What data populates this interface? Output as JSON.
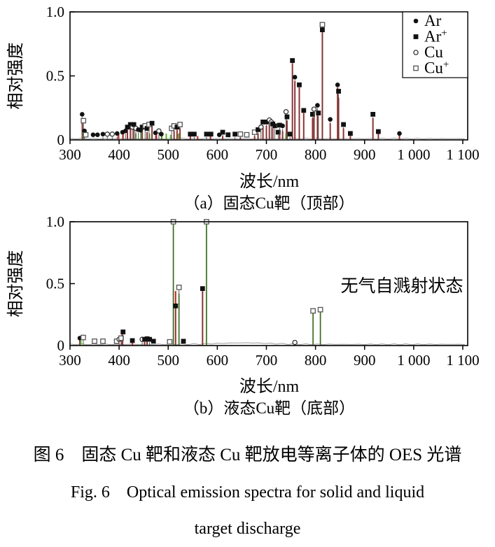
{
  "figure": {
    "caption_zh": "图 6　固态 Cu 靶和液态 Cu 靶放电等离子体的 OES 光谱",
    "caption_en_line1": "Fig. 6　Optical emission spectra for solid and liquid",
    "caption_en_line2": "target discharge"
  },
  "colors": {
    "spike_red": "#c32222",
    "spike_green": "#5fae2f",
    "stem_gray": "#4a4a4a",
    "baseline_gray": "#9a9a9a",
    "marker_black": "#111111",
    "open_marker_stroke": "#555555",
    "axis_black": "#000000",
    "annotation_gray": "#3a3a3a"
  },
  "chart_data": [
    {
      "id": "a",
      "type": "scatter",
      "subtype": "stem-spectrum",
      "subtitle": "（a）固态Cu靶（顶部）",
      "xlabel": "波长/nm",
      "ylabel": "相对强度",
      "xlim": [
        300,
        1110
      ],
      "ylim": [
        0,
        1.0
      ],
      "grid": false,
      "legend_position": "top-right-inside",
      "xticks": [
        {
          "v": 300,
          "label": "300"
        },
        {
          "v": 400,
          "label": "400"
        },
        {
          "v": 500,
          "label": "500"
        },
        {
          "v": 600,
          "label": "600"
        },
        {
          "v": 700,
          "label": "700"
        },
        {
          "v": 800,
          "label": "800"
        },
        {
          "v": 900,
          "label": "900"
        },
        {
          "v": 1000,
          "label": "1 000"
        },
        {
          "v": 1100,
          "label": "1 100"
        }
      ],
      "yticks": [
        {
          "v": 0,
          "label": "0"
        },
        {
          "v": 0.5,
          "label": "0.5"
        },
        {
          "v": 1.0,
          "label": "1.0"
        }
      ],
      "legend": [
        {
          "base": "Ar",
          "sup": "",
          "marker": "filled-circle"
        },
        {
          "base": "Ar",
          "sup": "+",
          "marker": "filled-square"
        },
        {
          "base": "Cu",
          "sup": "",
          "marker": "open-circle"
        },
        {
          "base": "Cu",
          "sup": "+",
          "marker": "open-square"
        }
      ],
      "points": [
        [
          324.7,
          0.2,
          "Ar"
        ],
        [
          327.4,
          0.15,
          "Cu+"
        ],
        [
          329.5,
          0.07,
          "Ar"
        ],
        [
          332,
          0.04,
          "Cu+"
        ],
        [
          347,
          0.04,
          "Ar"
        ],
        [
          356,
          0.04,
          "Ar"
        ],
        [
          367,
          0.045,
          "Ar"
        ],
        [
          376,
          0.045,
          "Cu"
        ],
        [
          386,
          0.045,
          "Cu"
        ],
        [
          396,
          0.05,
          "Ar"
        ],
        [
          407,
          0.06,
          "Ar"
        ],
        [
          413,
          0.07,
          "Ar"
        ],
        [
          417,
          0.1,
          "Ar+"
        ],
        [
          423,
          0.12,
          "Ar+"
        ],
        [
          427,
          0.1,
          "Cu"
        ],
        [
          430,
          0.12,
          "Ar+"
        ],
        [
          434,
          0.09,
          "Cu"
        ],
        [
          439,
          0.08,
          "Ar"
        ],
        [
          444,
          0.075,
          "Ar"
        ],
        [
          447,
          0.1,
          "Ar+"
        ],
        [
          453,
          0.11,
          "Cu+"
        ],
        [
          457,
          0.09,
          "Ar+"
        ],
        [
          461,
          0.12,
          "Cu+"
        ],
        [
          467,
          0.13,
          "Ar+"
        ],
        [
          474,
          0.055,
          "Ar"
        ],
        [
          481,
          0.07,
          "Cu"
        ],
        [
          486,
          0.045,
          "Ar"
        ],
        [
          507,
          0.09,
          "Cu+"
        ],
        [
          512,
          0.11,
          "Cu+"
        ],
        [
          518,
          0.1,
          "Ar+"
        ],
        [
          524,
          0.12,
          "Cu+"
        ],
        [
          545,
          0.045,
          "Ar+"
        ],
        [
          553,
          0.045,
          "Ar+"
        ],
        [
          578,
          0.045,
          "Ar+"
        ],
        [
          587,
          0.045,
          "Ar+"
        ],
        [
          604,
          0.04,
          "Ar"
        ],
        [
          611,
          0.06,
          "Ar+"
        ],
        [
          622,
          0.04,
          "Ar+"
        ],
        [
          636,
          0.045,
          "Ar+"
        ],
        [
          647,
          0.045,
          "Cu+"
        ],
        [
          660,
          0.04,
          "Cu+"
        ],
        [
          676,
          0.06,
          "Cu+"
        ],
        [
          683,
          0.08,
          "Ar+"
        ],
        [
          689,
          0.1,
          "Cu"
        ],
        [
          693,
          0.14,
          "Ar+"
        ],
        [
          700,
          0.14,
          "Ar+"
        ],
        [
          706,
          0.155,
          "Cu"
        ],
        [
          710,
          0.14,
          "Cu"
        ],
        [
          713,
          0.125,
          "Ar+"
        ],
        [
          717,
          0.11,
          "Ar+"
        ],
        [
          724,
          0.06,
          "Ar+"
        ],
        [
          727,
          0.115,
          "Ar+"
        ],
        [
          733,
          0.11,
          "Ar"
        ],
        [
          740,
          0.22,
          "Cu"
        ],
        [
          742,
          0.18,
          "Ar+"
        ],
        [
          748,
          0.045,
          "Ar+"
        ],
        [
          753,
          0.62,
          "Ar+"
        ],
        [
          758,
          0.49,
          "Ar"
        ],
        [
          767,
          0.43,
          "Ar+"
        ],
        [
          776,
          0.23,
          "Ar+"
        ],
        [
          794,
          0.2,
          "Ar+"
        ],
        [
          797,
          0.24,
          "Cu"
        ],
        [
          804,
          0.27,
          "Ar"
        ],
        [
          806,
          0.21,
          "Ar+"
        ],
        [
          814,
          0.9,
          "Cu+"
        ],
        [
          814,
          0.86,
          "Ar+"
        ],
        [
          830,
          0.16,
          "Ar"
        ],
        [
          845,
          0.43,
          "Ar"
        ],
        [
          847,
          0.38,
          "Ar+"
        ],
        [
          857,
          0.12,
          "Ar+"
        ],
        [
          871,
          0.05,
          "Ar+"
        ],
        [
          917,
          0.2,
          "Ar+"
        ],
        [
          928,
          0.065,
          "Ar+"
        ],
        [
          971,
          0.05,
          "Ar"
        ]
      ],
      "spikes": {
        "red": [
          [
            325,
            0.16
          ],
          [
            399,
            0.05
          ],
          [
            408,
            0.06
          ],
          [
            417,
            0.08
          ],
          [
            423,
            0.1
          ],
          [
            430,
            0.09
          ],
          [
            447,
            0.07
          ],
          [
            457,
            0.06
          ],
          [
            467,
            0.11
          ],
          [
            476,
            0.04
          ],
          [
            512,
            0.07
          ],
          [
            518,
            0.08
          ],
          [
            524,
            0.09
          ],
          [
            545,
            0.03
          ],
          [
            560,
            0.03
          ],
          [
            586,
            0.03
          ],
          [
            611,
            0.03
          ],
          [
            647,
            0.02
          ],
          [
            676,
            0.03
          ],
          [
            683,
            0.05
          ],
          [
            693,
            0.11
          ],
          [
            700,
            0.11
          ],
          [
            706,
            0.12
          ],
          [
            713,
            0.09
          ],
          [
            727,
            0.08
          ],
          [
            733,
            0.07
          ],
          [
            742,
            0.15
          ],
          [
            753,
            0.6
          ],
          [
            758,
            0.46
          ],
          [
            767,
            0.41
          ],
          [
            776,
            0.21
          ],
          [
            794,
            0.17
          ],
          [
            797,
            0.21
          ],
          [
            804,
            0.23
          ],
          [
            814,
            0.84
          ],
          [
            830,
            0.13
          ],
          [
            845,
            0.41
          ],
          [
            847,
            0.33
          ],
          [
            857,
            0.09
          ],
          [
            871,
            0.03
          ],
          [
            917,
            0.17
          ],
          [
            928,
            0.05
          ],
          [
            971,
            0.04
          ]
        ],
        "green": [
          [
            327,
            0.08
          ],
          [
            434,
            0.05
          ],
          [
            445,
            0.06
          ],
          [
            462,
            0.05
          ],
          [
            487,
            0.06
          ],
          [
            496,
            0.05
          ],
          [
            505,
            0.04
          ],
          [
            521,
            0.05
          ],
          [
            740,
            0.05
          ]
        ]
      }
    },
    {
      "id": "b",
      "type": "scatter",
      "subtype": "stem-spectrum",
      "subtitle": "（b）液态Cu靶（底部）",
      "xlabel": "波长/nm",
      "ylabel": "相对强度",
      "xlim": [
        300,
        1110
      ],
      "ylim": [
        0,
        1.0
      ],
      "grid": false,
      "annotation": {
        "text": "无气自溅射状态",
        "x": 976,
        "y": 0.48
      },
      "xticks": [
        {
          "v": 300,
          "label": "300"
        },
        {
          "v": 400,
          "label": "400"
        },
        {
          "v": 500,
          "label": "500"
        },
        {
          "v": 600,
          "label": "600"
        },
        {
          "v": 700,
          "label": "700"
        },
        {
          "v": 800,
          "label": "800"
        },
        {
          "v": 900,
          "label": "900"
        },
        {
          "v": 1000,
          "label": "1 000"
        },
        {
          "v": 1100,
          "label": "1 100"
        }
      ],
      "yticks": [
        {
          "v": 0,
          "label": "0"
        },
        {
          "v": 0.5,
          "label": "0.5"
        },
        {
          "v": 1.0,
          "label": "1.0"
        }
      ],
      "points": [
        [
          320,
          0.06,
          "Ar"
        ],
        [
          327,
          0.065,
          "Cu+"
        ],
        [
          350,
          0.035,
          "Cu+"
        ],
        [
          367,
          0.035,
          "Cu+"
        ],
        [
          395,
          0.035,
          "Cu+"
        ],
        [
          400,
          0.05,
          "Cu"
        ],
        [
          404,
          0.06,
          "Cu+"
        ],
        [
          408,
          0.11,
          "Ar+"
        ],
        [
          427,
          0.04,
          "Ar+"
        ],
        [
          447,
          0.05,
          "Cu"
        ],
        [
          452,
          0.05,
          "Ar+"
        ],
        [
          457,
          0.055,
          "Ar+"
        ],
        [
          462,
          0.05,
          "Ar+"
        ],
        [
          470,
          0.035,
          "Ar+"
        ],
        [
          503,
          0.03,
          "Cu+"
        ],
        [
          510.5,
          1.0,
          "Cu+"
        ],
        [
          515,
          0.32,
          "Ar+"
        ],
        [
          522,
          0.47,
          "Cu+"
        ],
        [
          531,
          0.035,
          "Ar+"
        ],
        [
          570,
          0.46,
          "Ar+"
        ],
        [
          578,
          1.0,
          "Cu+"
        ],
        [
          758,
          0.025,
          "Cu"
        ],
        [
          795,
          0.28,
          "Cu+"
        ],
        [
          810,
          0.29,
          "Cu+"
        ]
      ],
      "spikes": {
        "red": [
          [
            320,
            0.05
          ],
          [
            406,
            0.09
          ],
          [
            427,
            0.02
          ],
          [
            452,
            0.03
          ],
          [
            457,
            0.03
          ],
          [
            515,
            0.44
          ],
          [
            570,
            0.44
          ]
        ],
        "green": [
          [
            322,
            0.04
          ],
          [
            510.5,
            0.98
          ],
          [
            522,
            0.42
          ],
          [
            578,
            0.98
          ],
          [
            795,
            0.26
          ],
          [
            810,
            0.27
          ]
        ]
      }
    }
  ]
}
